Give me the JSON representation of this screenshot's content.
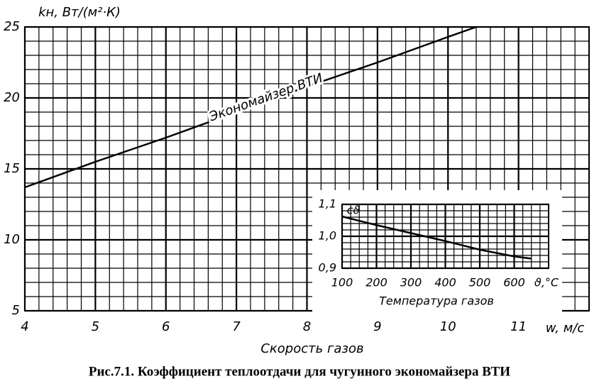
{
  "caption": "Рис.7.1. Коэффициент теплоотдачи для чугунного экономайзера ВТИ",
  "chart_data": [
    {
      "type": "line",
      "y_label": "kн, Вт/(м²·К)",
      "x_label": "w, м/с",
      "x_title": "Скорость газов",
      "x": [
        4,
        5,
        6,
        7,
        8,
        9,
        10,
        10.4
      ],
      "series": [
        {
          "name": "Экономайзер ВТИ",
          "color": "#000000",
          "values": [
            13.7,
            15.5,
            17.2,
            19.0,
            20.8,
            22.5,
            24.3,
            25
          ]
        }
      ],
      "xlim": [
        4,
        12
      ],
      "ylim": [
        5,
        25
      ],
      "xticks": [
        4,
        5,
        6,
        7,
        8,
        9,
        10,
        11
      ],
      "yticks": [
        5,
        10,
        15,
        20,
        25
      ],
      "grid": true
    },
    {
      "type": "line",
      "x_label": "ϑ,°С",
      "x_title": "Температура газов",
      "x": [
        100,
        200,
        300,
        400,
        500,
        600,
        650
      ],
      "series": [
        {
          "name": "cϑ",
          "color": "#000000",
          "values": [
            1.062,
            1.035,
            1.01,
            0.985,
            0.958,
            0.937,
            0.93
          ]
        }
      ],
      "xlim": [
        100,
        700
      ],
      "ylim": [
        0.9,
        1.1
      ],
      "xticks": [
        100,
        200,
        300,
        400,
        500,
        600
      ],
      "yticks": [
        {
          "value": 0.9,
          "label": "0,9"
        },
        {
          "value": 1.0,
          "label": "1,0"
        },
        {
          "value": 1.1,
          "label": "1,1"
        }
      ],
      "grid": true
    }
  ]
}
